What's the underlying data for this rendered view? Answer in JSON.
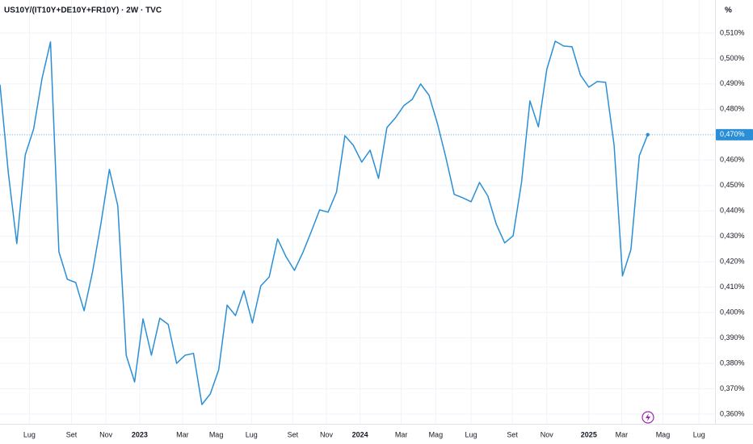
{
  "chart_data": {
    "type": "line",
    "title": "US10Y/(IT10Y+DE10Y+FR10Y) · 2W · TVC",
    "y_axis_label": "%",
    "x": [
      0,
      1,
      2,
      3,
      4,
      5,
      6,
      7,
      8,
      9,
      10,
      11,
      12,
      13,
      14,
      15,
      16,
      17,
      18,
      19,
      20,
      21,
      22,
      23,
      24,
      25,
      26,
      27,
      28,
      29,
      30,
      31,
      32,
      33,
      34,
      35,
      36,
      37,
      38,
      39,
      40,
      41,
      42,
      43,
      44,
      45,
      46,
      47,
      48,
      49,
      50,
      51,
      52,
      53,
      54,
      55,
      56,
      57,
      58,
      59,
      60,
      61,
      62,
      63,
      64,
      65,
      66,
      67,
      68,
      69,
      70,
      71,
      72,
      73,
      74,
      75,
      76,
      77
    ],
    "series": [
      {
        "color": "#2a8fd6",
        "values": [
          0.4897,
          0.4547,
          0.4271,
          0.462,
          0.4722,
          0.4922,
          0.5065,
          0.4239,
          0.4131,
          0.4118,
          0.4007,
          0.4159,
          0.435,
          0.4563,
          0.442,
          0.3832,
          0.3727,
          0.3975,
          0.3832,
          0.3978,
          0.3953,
          0.38,
          0.3832,
          0.3839,
          0.3638,
          0.368,
          0.3775,
          0.4029,
          0.3988,
          0.4086,
          0.3959,
          0.4105,
          0.414,
          0.429,
          0.422,
          0.4166,
          0.4236,
          0.4318,
          0.4404,
          0.4395,
          0.4474,
          0.4696,
          0.4658,
          0.4592,
          0.4639,
          0.4528,
          0.4728,
          0.4766,
          0.4814,
          0.4839,
          0.49,
          0.4855,
          0.4744,
          0.4611,
          0.4465,
          0.4452,
          0.4436,
          0.4512,
          0.4458,
          0.4347,
          0.4274,
          0.4302,
          0.4512,
          0.4833,
          0.4731,
          0.4957,
          0.5068,
          0.5049,
          0.5046,
          0.4935,
          0.4887,
          0.4909,
          0.4906,
          0.4658,
          0.4144,
          0.4248,
          0.4617,
          0.47
        ]
      }
    ],
    "xlim": [
      0,
      85
    ],
    "xticks": [
      {
        "value": 3.5,
        "label": "Lug"
      },
      {
        "value": 8.5,
        "label": "Set"
      },
      {
        "value": 12.6,
        "label": "Nov"
      },
      {
        "value": 16.6,
        "label": "2023",
        "bold": true
      },
      {
        "value": 21.7,
        "label": "Mar"
      },
      {
        "value": 25.7,
        "label": "Mag"
      },
      {
        "value": 29.9,
        "label": "Lug"
      },
      {
        "value": 34.8,
        "label": "Set"
      },
      {
        "value": 38.8,
        "label": "Nov"
      },
      {
        "value": 42.8,
        "label": "2024",
        "bold": true
      },
      {
        "value": 47.7,
        "label": "Mar"
      },
      {
        "value": 51.8,
        "label": "Mag"
      },
      {
        "value": 56.0,
        "label": "Lug"
      },
      {
        "value": 60.9,
        "label": "Set"
      },
      {
        "value": 65.0,
        "label": "Nov"
      },
      {
        "value": 70.0,
        "label": "2025",
        "bold": true
      },
      {
        "value": 73.9,
        "label": "Mar"
      },
      {
        "value": 78.8,
        "label": "Mag"
      },
      {
        "value": 83.1,
        "label": "Lug"
      }
    ],
    "ylim": [
      0.3562,
      0.523
    ],
    "yticks": [
      {
        "value": 0.36,
        "label": "0,360%"
      },
      {
        "value": 0.37,
        "label": "0,370%"
      },
      {
        "value": 0.38,
        "label": "0,380%"
      },
      {
        "value": 0.39,
        "label": "0,390%"
      },
      {
        "value": 0.4,
        "label": "0,400%"
      },
      {
        "value": 0.41,
        "label": "0,410%"
      },
      {
        "value": 0.42,
        "label": "0,420%"
      },
      {
        "value": 0.43,
        "label": "0,430%"
      },
      {
        "value": 0.44,
        "label": "0,440%"
      },
      {
        "value": 0.45,
        "label": "0,450%"
      },
      {
        "value": 0.46,
        "label": "0,460%"
      },
      {
        "value": 0.47,
        "label": "0,470%"
      },
      {
        "value": 0.48,
        "label": "0,480%"
      },
      {
        "value": 0.49,
        "label": "0,490%"
      },
      {
        "value": 0.5,
        "label": "0,500%"
      },
      {
        "value": 0.51,
        "label": "0,510%"
      }
    ],
    "last_price": {
      "value": 0.47,
      "label": "0,470%"
    },
    "grid": true
  }
}
